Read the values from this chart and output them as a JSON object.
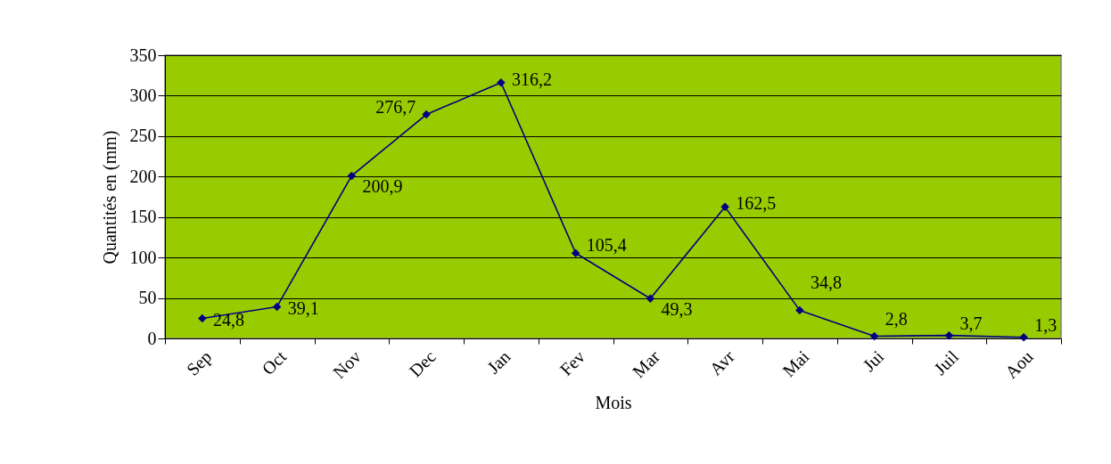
{
  "chart_data": {
    "type": "line",
    "xlabel": "Mois",
    "ylabel": "Quantités en (mm)",
    "categories": [
      "Sep",
      "Oct",
      "Nov",
      "Dec",
      "Jan",
      "Fev",
      "Mar",
      "Avr",
      "Mai",
      "Jui",
      "Juil",
      "Aou"
    ],
    "series": [
      {
        "color": "#000080",
        "values": [
          24.8,
          39.1,
          200.9,
          276.7,
          316.2,
          105.4,
          49.3,
          162.5,
          34.8,
          2.8,
          3.7,
          1.3
        ],
        "value_labels": [
          "24,8",
          "39,1",
          "200,9",
          "276,7",
          "316,2",
          "105,4",
          "49,3",
          "162,5",
          "34,8",
          "2,8",
          "3,7",
          "1,3"
        ]
      }
    ],
    "ylim": [
      0,
      350
    ],
    "yticks": [
      0,
      50,
      100,
      150,
      200,
      250,
      300,
      350
    ],
    "grid": "y",
    "marker": "diamond",
    "line_style": "solid"
  }
}
